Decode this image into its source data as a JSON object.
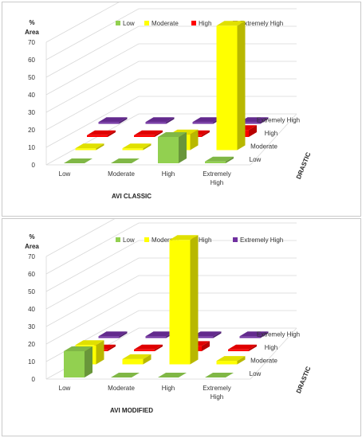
{
  "colors": {
    "Low": "#92d050",
    "Moderate": "#ffff00",
    "High": "#ff0000",
    "Extremely High": "#7030a0"
  },
  "chart_data": [
    {
      "type": "bar",
      "title": "AVI CLASSIC",
      "ylabel": "% Area",
      "ylabel_lines": [
        "%",
        "Area"
      ],
      "zlabel": "DRASTIC",
      "ylim": [
        0,
        80
      ],
      "yticks": [
        0,
        10,
        20,
        30,
        40,
        50,
        60,
        70
      ],
      "legend_position": "top",
      "categories": [
        "Low",
        "Moderate",
        "High",
        "Extremely High"
      ],
      "category_label_lines": [
        [
          "Low"
        ],
        [
          "Moderate"
        ],
        [
          "High"
        ],
        [
          "Extremely",
          "High"
        ]
      ],
      "series": [
        {
          "name": "Low",
          "values": [
            0,
            0,
            15,
            1
          ]
        },
        {
          "name": "Moderate",
          "values": [
            1,
            1,
            9,
            71
          ]
        },
        {
          "name": "High",
          "values": [
            1,
            1,
            1,
            4
          ]
        },
        {
          "name": "Extremely High",
          "values": [
            1,
            1,
            1,
            1
          ]
        }
      ]
    },
    {
      "type": "bar",
      "title": "AVI MODIFIED",
      "ylabel": "% Area",
      "ylabel_lines": [
        "%",
        "Area"
      ],
      "zlabel": "DRASTIC",
      "ylim": [
        0,
        80
      ],
      "yticks": [
        0,
        10,
        20,
        30,
        40,
        50,
        60,
        70
      ],
      "legend_position": "top",
      "categories": [
        "Low",
        "Moderate",
        "High",
        "Extremely High"
      ],
      "category_label_lines": [
        [
          "Low"
        ],
        [
          "Moderate"
        ],
        [
          "High"
        ],
        [
          "Extremely",
          "High"
        ]
      ],
      "series": [
        {
          "name": "Low",
          "values": [
            15,
            0,
            0,
            0
          ]
        },
        {
          "name": "Moderate",
          "values": [
            11,
            3,
            71,
            2
          ]
        },
        {
          "name": "High",
          "values": [
            1,
            1,
            3,
            1
          ]
        },
        {
          "name": "Extremely High",
          "values": [
            1,
            1,
            1,
            1
          ]
        }
      ]
    }
  ]
}
